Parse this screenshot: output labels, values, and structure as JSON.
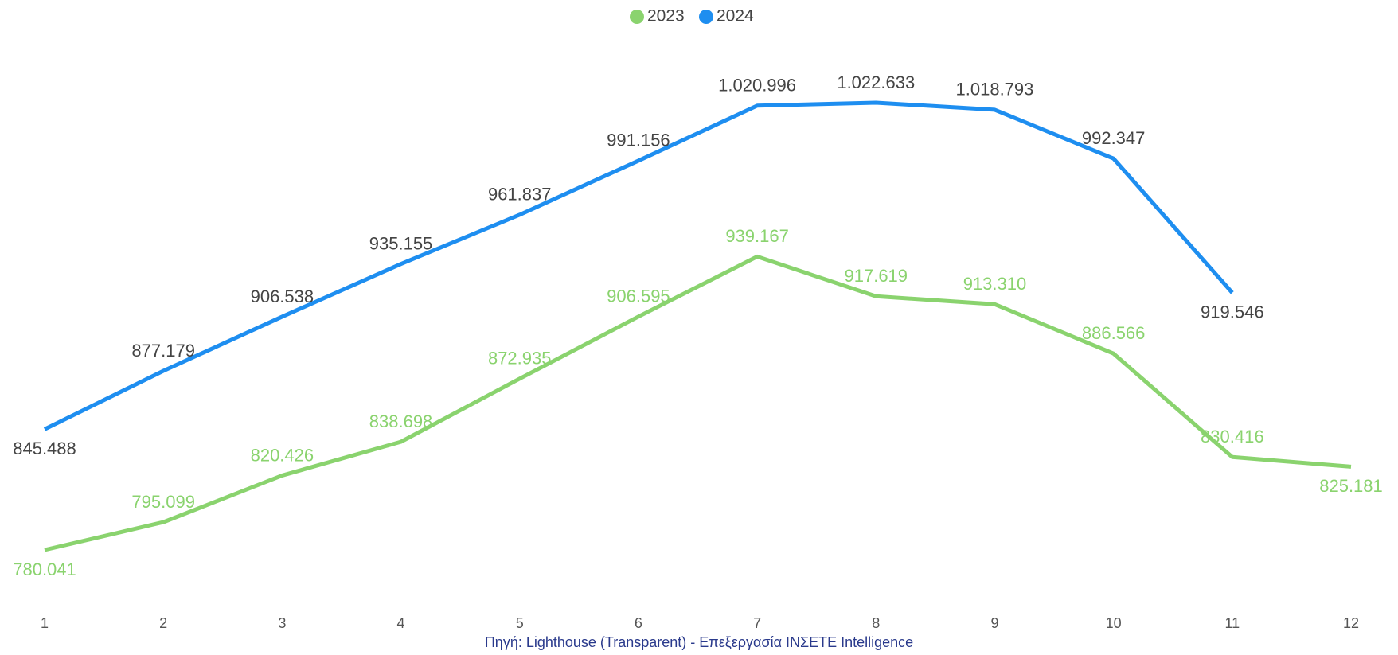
{
  "chart_data": {
    "type": "line",
    "categories": [
      "1",
      "2",
      "3",
      "4",
      "5",
      "6",
      "7",
      "8",
      "9",
      "10",
      "11",
      "12"
    ],
    "series": [
      {
        "name": "2023",
        "color": "#8ad36e",
        "label_color": "#8ad36e",
        "values": [
          780041,
          795099,
          820426,
          838698,
          872935,
          906595,
          939167,
          917619,
          913310,
          886566,
          830416,
          825181
        ],
        "value_labels": [
          "780.041",
          "795.099",
          "820.426",
          "838.698",
          "872.935",
          "906.595",
          "939.167",
          "917.619",
          "913.310",
          "886.566",
          "830.416",
          "825.181"
        ]
      },
      {
        "name": "2024",
        "color": "#1e8ef0",
        "label_color": "#444444",
        "values": [
          845488,
          877179,
          906538,
          935155,
          961837,
          991156,
          1020996,
          1022633,
          1018793,
          992347,
          919546,
          null
        ],
        "value_labels": [
          "845.488",
          "877.179",
          "906.538",
          "935.155",
          "961.837",
          "991.156",
          "1.020.996",
          "1.022.633",
          "1.018.793",
          "992.347",
          "919.546",
          null
        ]
      }
    ],
    "legend": "top",
    "source": "Πηγή: Lighthouse (Transparent) - Επεξεργασία INΣETE Intelligence"
  }
}
